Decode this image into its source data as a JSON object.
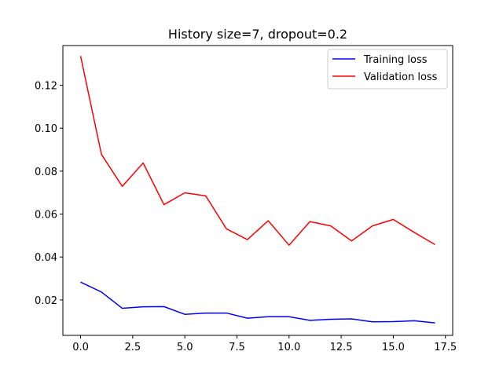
{
  "chart_data": {
    "type": "line",
    "title": "History size=7, dropout=0.2",
    "xlabel": "",
    "ylabel": "",
    "xlim": [
      -0.85,
      17.85
    ],
    "ylim": [
      0.0035,
      0.1385
    ],
    "x_ticks": [
      0.0,
      2.5,
      5.0,
      7.5,
      10.0,
      12.5,
      15.0,
      17.5
    ],
    "x_tick_labels": [
      "0.0",
      "2.5",
      "5.0",
      "7.5",
      "10.0",
      "12.5",
      "15.0",
      "17.5"
    ],
    "y_ticks": [
      0.02,
      0.04,
      0.06,
      0.08,
      0.1,
      0.12
    ],
    "y_tick_labels": [
      "0.02",
      "0.04",
      "0.06",
      "0.08",
      "0.10",
      "0.12"
    ],
    "grid": false,
    "legend_position": "top-right",
    "x": [
      0,
      1,
      2,
      3,
      4,
      5,
      6,
      7,
      8,
      9,
      10,
      11,
      12,
      13,
      14,
      15,
      16,
      17
    ],
    "series": [
      {
        "name": "Training loss",
        "color": "#0000ff",
        "values": [
          0.0283,
          0.0237,
          0.0161,
          0.0168,
          0.0169,
          0.0133,
          0.0139,
          0.0139,
          0.0115,
          0.0122,
          0.0122,
          0.0105,
          0.011,
          0.0112,
          0.0098,
          0.0099,
          0.0103,
          0.0093
        ]
      },
      {
        "name": "Validation loss",
        "color": "#ff0000",
        "values": [
          0.1336,
          0.0878,
          0.0729,
          0.0838,
          0.0644,
          0.0699,
          0.0685,
          0.0531,
          0.0481,
          0.0569,
          0.0455,
          0.0565,
          0.0545,
          0.0475,
          0.0545,
          0.0575,
          0.0515,
          0.0458
        ]
      }
    ]
  }
}
